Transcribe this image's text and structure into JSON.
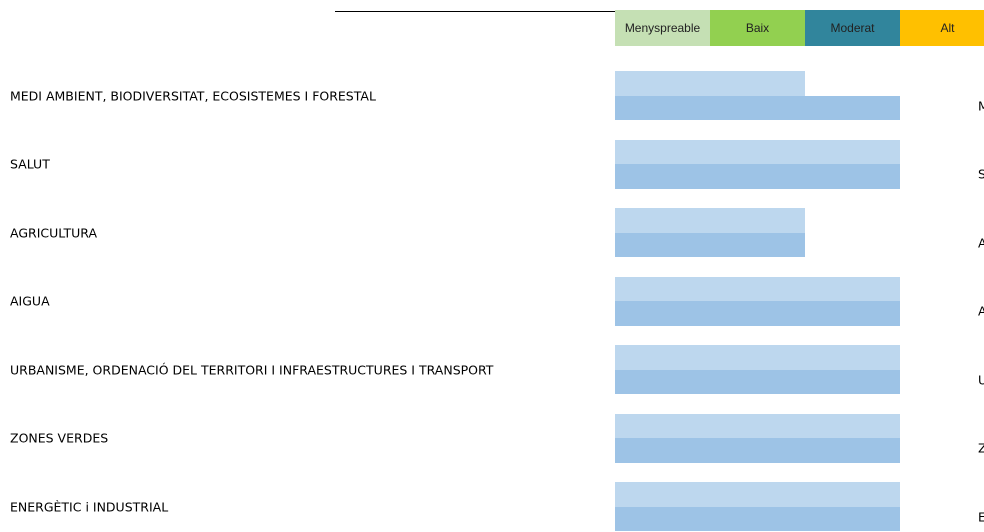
{
  "chart_data": {
    "type": "bar",
    "levels": [
      {
        "label": "Menyspreable",
        "color": "#c5e0b4"
      },
      {
        "label": "Baix",
        "color": "#92d050"
      },
      {
        "label": "Moderat",
        "color": "#31859c"
      },
      {
        "label": "Alt",
        "color": "#ffc000"
      }
    ],
    "categories": [
      "MEDI AMBIENT, BIODIVERSITAT, ECOSISTEMES I FORESTAL",
      "SALUT",
      "AGRICULTURA",
      "AIGUA",
      "URBANISME, ORDENACIÓ DEL TERRITORI I INFRAESTRUCTURES I TRANSPORT",
      "ZONES VERDES",
      "ENERGÈTIC i INDUSTRIAL"
    ],
    "series": [
      {
        "color": "#bdd7ee",
        "values": [
          2,
          3,
          2,
          3,
          3,
          3,
          3
        ]
      },
      {
        "color": "#9dc3e6",
        "values": [
          3,
          3,
          2,
          3,
          3,
          3,
          3
        ]
      }
    ],
    "right_labels": [
      "M",
      "S",
      "A",
      "A",
      "U",
      "Z",
      "E"
    ]
  }
}
